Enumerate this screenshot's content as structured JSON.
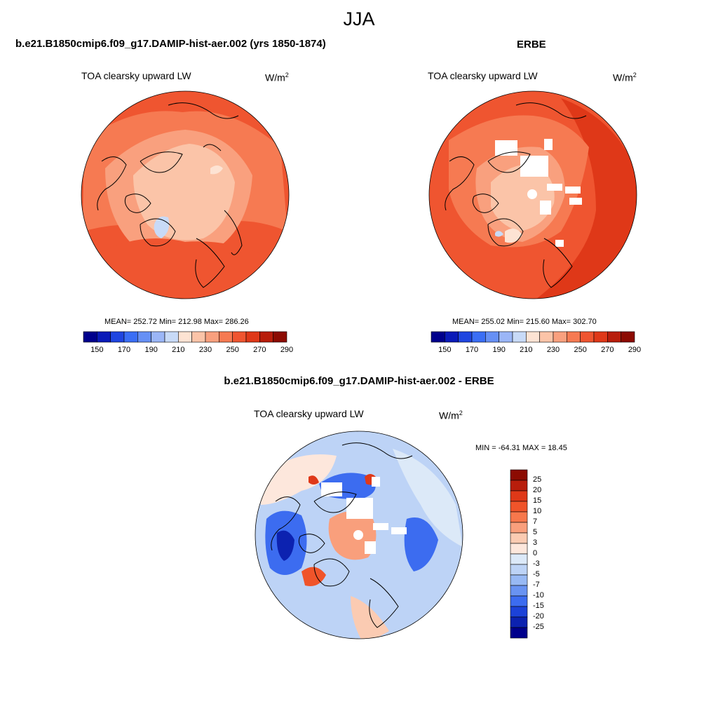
{
  "title": "JJA",
  "panels": [
    {
      "id": "model",
      "heading": "b.e21.B1850cmip6.f09_g17.DAMIP-hist-aer.002 (yrs 1850-1874)",
      "variable": "TOA clearsky upward LW",
      "units": "W/m",
      "units_exp": "2",
      "stats": "MEAN= 252.72  Min= 212.98  Max= 286.26",
      "colorbar_labels": [
        "150",
        "170",
        "190",
        "210",
        "230",
        "250",
        "270",
        "290"
      ]
    },
    {
      "id": "obs",
      "heading": "ERBE",
      "variable": "TOA clearsky upward LW",
      "units": "W/m",
      "units_exp": "2",
      "stats": "MEAN= 255.02  Min= 215.60  Max= 302.70",
      "colorbar_labels": [
        "150",
        "170",
        "190",
        "210",
        "230",
        "250",
        "270",
        "290"
      ]
    },
    {
      "id": "diff",
      "heading": "b.e21.B1850cmip6.f09_g17.DAMIP-hist-aer.002 - ERBE",
      "variable": "TOA clearsky upward LW",
      "units": "W/m",
      "units_exp": "2",
      "stats": "MIN = -64.31 MAX =  18.45",
      "colorbar_labels": [
        "25",
        "20",
        "15",
        "10",
        "7",
        "5",
        "3",
        "0",
        "-3",
        "-5",
        "-7",
        "-10",
        "-15",
        "-20",
        "-25"
      ]
    }
  ],
  "colors": {
    "abs_scale": [
      "#00008c",
      "#0a1ab8",
      "#1f45e0",
      "#3a6ef5",
      "#6690f5",
      "#9bb6f7",
      "#c8daf7",
      "#fde3d3",
      "#fbc4a8",
      "#f9a07e",
      "#f67a52",
      "#ef5530",
      "#df3818",
      "#b81d0b",
      "#8c0b02"
    ],
    "diff_scale": [
      "#8c0b02",
      "#b81d0b",
      "#df3818",
      "#f0542a",
      "#f7784c",
      "#f99f7c",
      "#fbcbb2",
      "#fde7dc",
      "#dce9f8",
      "#bdd3f6",
      "#98b9f4",
      "#6993f2",
      "#3c6cf0",
      "#1c42d8",
      "#0c22b0",
      "#00008c"
    ]
  }
}
